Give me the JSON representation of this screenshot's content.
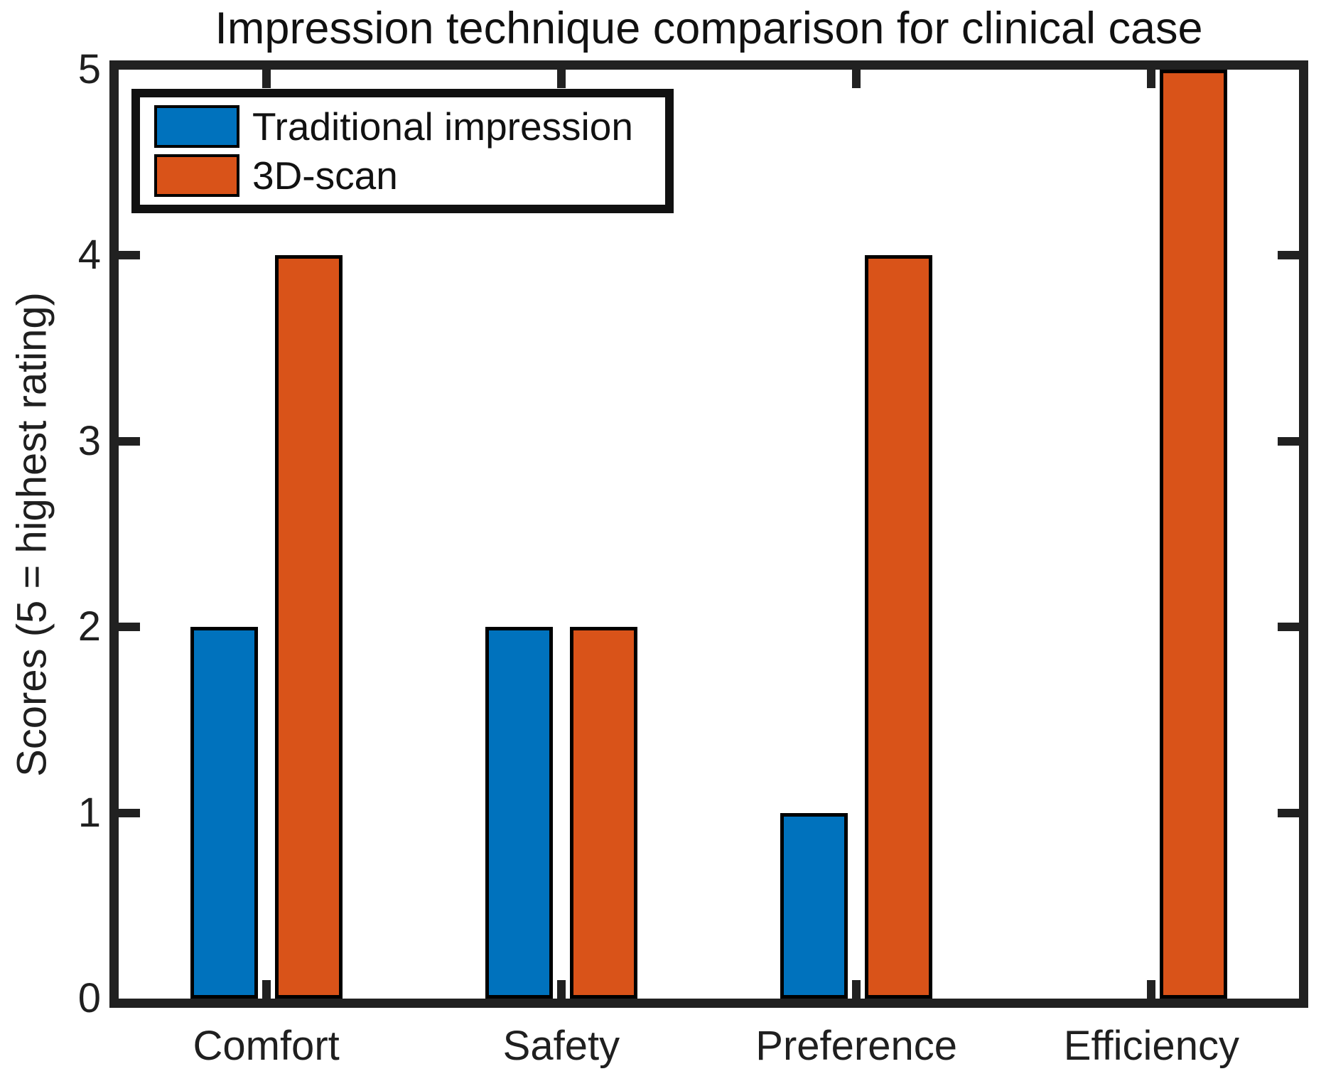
{
  "chart_data": {
    "type": "bar",
    "title": "Impression technique comparison for clinical case",
    "ylabel": "Scores (5 = highest rating)",
    "xlabel": "",
    "categories": [
      "Comfort",
      "Safety",
      "Preference",
      "Efficiency"
    ],
    "series": [
      {
        "name": "Traditional impression",
        "color": "#0072BD",
        "values": [
          2,
          2,
          1,
          0
        ]
      },
      {
        "name": "3D-scan",
        "color": "#D95319",
        "values": [
          4,
          2,
          4,
          5
        ]
      }
    ],
    "ylim": [
      0,
      5
    ],
    "yticks": [
      0,
      1,
      2,
      3,
      4,
      5
    ],
    "grid": false,
    "legend_position": "top-left",
    "bar_edge_color": "#000000",
    "axis_color": "#212121",
    "background_color": "#ffffff"
  }
}
